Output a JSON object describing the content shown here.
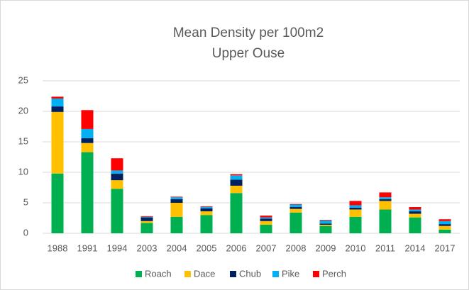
{
  "chart_data": {
    "type": "stacked_bar",
    "title": "Mean Density per 100m2",
    "subtitle": "Upper Ouse",
    "categories": [
      "1988",
      "1991",
      "1994",
      "2003",
      "2004",
      "2005",
      "2006",
      "2007",
      "2008",
      "2009",
      "2010",
      "2011",
      "2014",
      "2017"
    ],
    "series": [
      {
        "name": "Roach",
        "color": "#00b050",
        "values": [
          9.8,
          13.3,
          7.3,
          1.7,
          2.7,
          3.0,
          6.6,
          1.4,
          3.4,
          1.2,
          2.7,
          3.9,
          2.6,
          0.6
        ]
      },
      {
        "name": "Dace",
        "color": "#ffc000",
        "values": [
          10.1,
          1.5,
          1.4,
          0.3,
          2.3,
          0.6,
          1.2,
          0.6,
          0.6,
          0.2,
          1.2,
          1.4,
          0.6,
          0.6
        ]
      },
      {
        "name": "Chub",
        "color": "#002060",
        "values": [
          0.9,
          0.8,
          1.1,
          0.6,
          0.6,
          0.5,
          1.0,
          0.4,
          0.3,
          0.2,
          0.3,
          0.3,
          0.4,
          0.3
        ]
      },
      {
        "name": "Pike",
        "color": "#00b0f0",
        "values": [
          1.3,
          1.5,
          0.5,
          0.1,
          0.3,
          0.2,
          0.7,
          0.2,
          0.4,
          0.5,
          0.4,
          0.3,
          0.3,
          0.5
        ]
      },
      {
        "name": "Perch",
        "color": "#ff0000",
        "values": [
          0.3,
          3.1,
          2.0,
          0.1,
          0.1,
          0.1,
          0.2,
          0.3,
          0.1,
          0.1,
          0.7,
          0.8,
          0.4,
          0.3
        ]
      }
    ],
    "ylim": [
      0,
      25
    ],
    "yticks": [
      0,
      5,
      10,
      15,
      20,
      25
    ],
    "grid": true,
    "legend": "bottom"
  }
}
